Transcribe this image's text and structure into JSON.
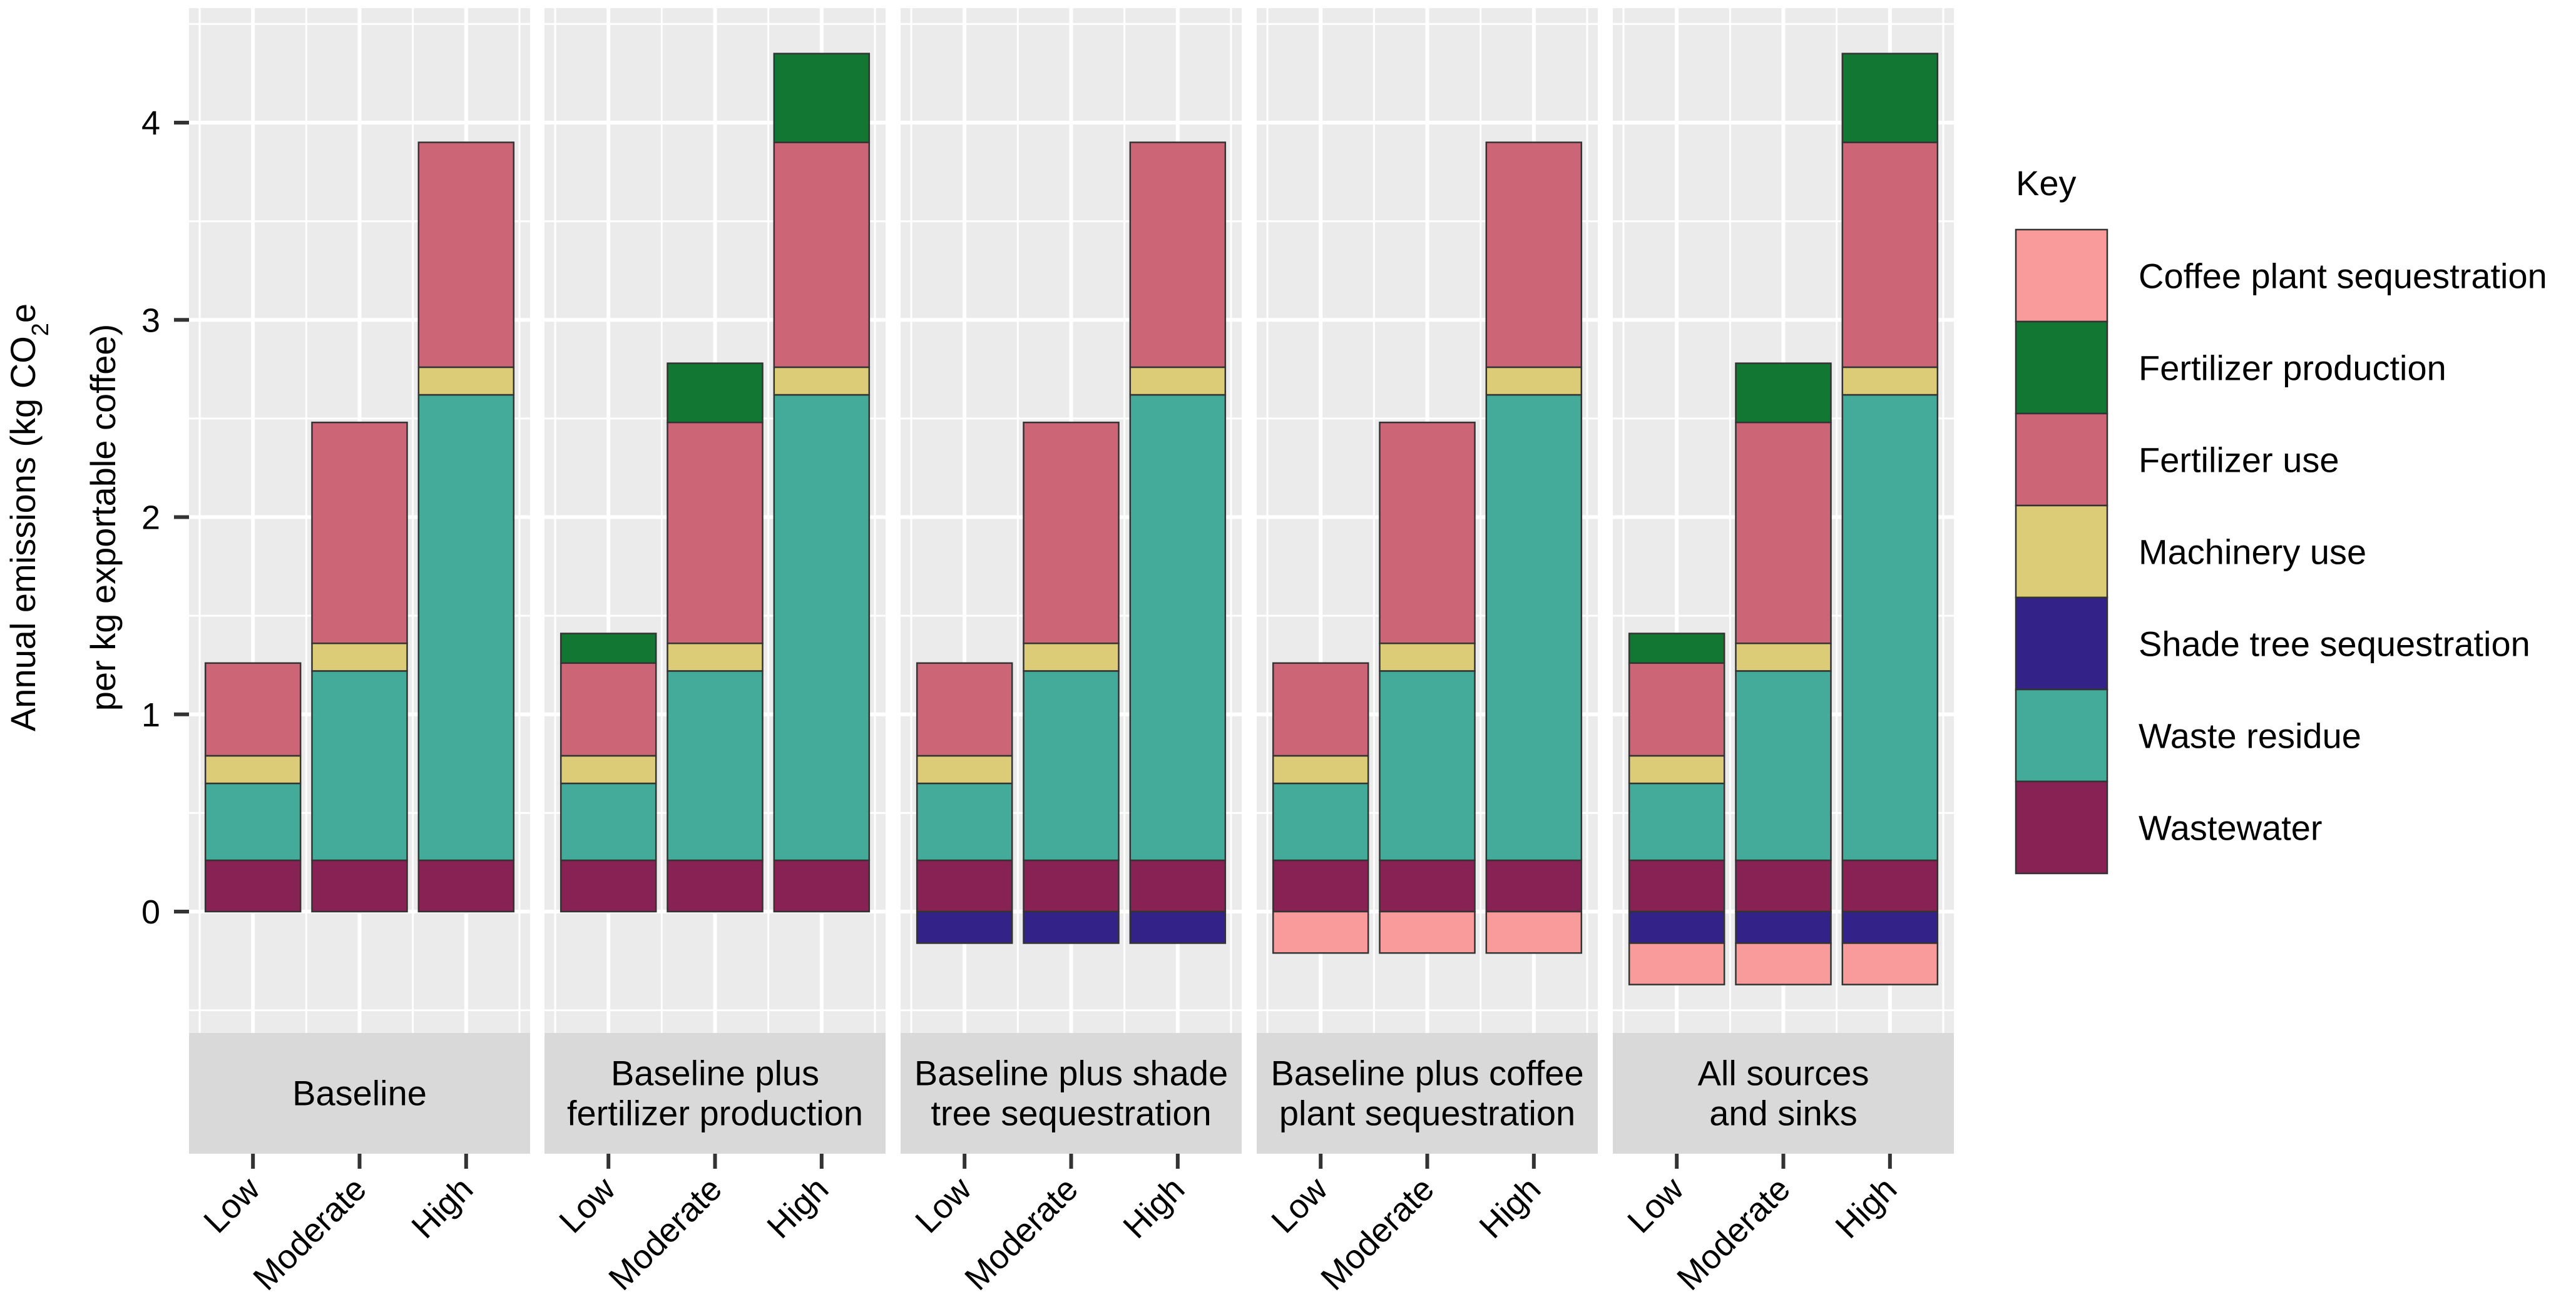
{
  "chart_data": {
    "type": "bar",
    "stacked": true,
    "facets": [
      "Baseline",
      "Baseline plus\nfertilizer production",
      "Baseline plus shade\ntree sequestration",
      "Baseline plus coffee\nplant sequestration",
      "All sources\nand sinks"
    ],
    "categories": [
      "Low",
      "Moderate",
      "High"
    ],
    "ylabel_line1": "Annual emissions (kg CO",
    "ylabel_sub": "2",
    "ylabel_line1_end": "e",
    "ylabel_line2": "per kg exportable coffee)",
    "xlabel": "",
    "ylim": [
      -0.55,
      4.55
    ],
    "yticks": [
      0,
      1,
      2,
      3,
      4
    ],
    "grid": true,
    "legend": {
      "title": "Key",
      "placement": "right",
      "entries": [
        {
          "name": "Coffee plant sequestration",
          "color": "#FA9B9B"
        },
        {
          "name": "Fertilizer production",
          "color": "#117733"
        },
        {
          "name": "Fertilizer use",
          "color": "#CC6677"
        },
        {
          "name": "Machinery use",
          "color": "#DDCC77"
        },
        {
          "name": "Shade tree sequestration",
          "color": "#332288"
        },
        {
          "name": "Waste residue",
          "color": "#44AA99"
        },
        {
          "name": "Wastewater",
          "color": "#882255"
        }
      ]
    },
    "stack_order_positive": [
      "Wastewater",
      "Waste residue",
      "Machinery use",
      "Fertilizer use",
      "Fertilizer production"
    ],
    "stack_order_negative": [
      "Shade tree sequestration",
      "Coffee plant sequestration"
    ],
    "panels": [
      {
        "facet": "Baseline",
        "series": {
          "Wastewater": [
            0.26,
            0.26,
            0.26
          ],
          "Waste residue": [
            0.39,
            0.96,
            2.36
          ],
          "Machinery use": [
            0.14,
            0.14,
            0.14
          ],
          "Fertilizer use": [
            0.47,
            1.12,
            1.14
          ]
        }
      },
      {
        "facet": "Baseline plus fertilizer production",
        "series": {
          "Wastewater": [
            0.26,
            0.26,
            0.26
          ],
          "Waste residue": [
            0.39,
            0.96,
            2.36
          ],
          "Machinery use": [
            0.14,
            0.14,
            0.14
          ],
          "Fertilizer use": [
            0.47,
            1.12,
            1.14
          ],
          "Fertilizer production": [
            0.15,
            0.3,
            0.45
          ]
        }
      },
      {
        "facet": "Baseline plus shade tree sequestration",
        "series": {
          "Wastewater": [
            0.26,
            0.26,
            0.26
          ],
          "Waste residue": [
            0.39,
            0.96,
            2.36
          ],
          "Machinery use": [
            0.14,
            0.14,
            0.14
          ],
          "Fertilizer use": [
            0.47,
            1.12,
            1.14
          ],
          "Shade tree sequestration": [
            -0.16,
            -0.16,
            -0.16
          ]
        }
      },
      {
        "facet": "Baseline plus coffee plant sequestration",
        "series": {
          "Wastewater": [
            0.26,
            0.26,
            0.26
          ],
          "Waste residue": [
            0.39,
            0.96,
            2.36
          ],
          "Machinery use": [
            0.14,
            0.14,
            0.14
          ],
          "Fertilizer use": [
            0.47,
            1.12,
            1.14
          ],
          "Coffee plant sequestration": [
            -0.21,
            -0.21,
            -0.21
          ]
        }
      },
      {
        "facet": "All sources and sinks",
        "series": {
          "Wastewater": [
            0.26,
            0.26,
            0.26
          ],
          "Waste residue": [
            0.39,
            0.96,
            2.36
          ],
          "Machinery use": [
            0.14,
            0.14,
            0.14
          ],
          "Fertilizer use": [
            0.47,
            1.12,
            1.14
          ],
          "Fertilizer production": [
            0.15,
            0.3,
            0.45
          ],
          "Shade tree sequestration": [
            -0.16,
            -0.16,
            -0.16
          ],
          "Coffee plant sequestration": [
            -0.21,
            -0.21,
            -0.21
          ]
        }
      }
    ]
  },
  "style": {
    "panel_background": "#EBEBEB",
    "strip_background": "#D9D9D9",
    "gridline_color": "#FFFFFF",
    "tick_color": "#333333",
    "bar_outline": "#333333"
  }
}
